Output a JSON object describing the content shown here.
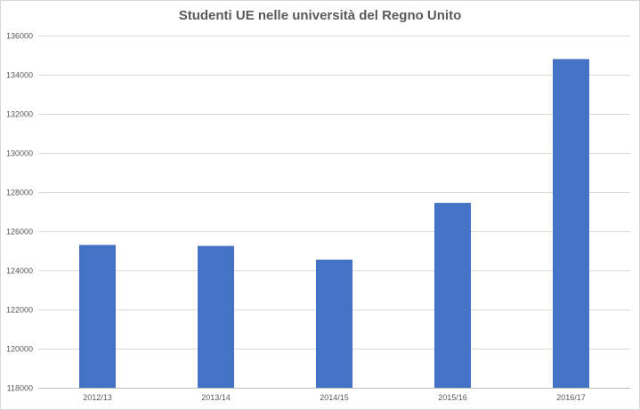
{
  "chart_data": {
    "type": "bar",
    "title": "Studenti UE nelle università del Regno Unito",
    "xlabel": "",
    "ylabel": "",
    "categories": [
      "2012/13",
      "2013/14",
      "2014/15",
      "2015/16",
      "2016/17"
    ],
    "values": [
      125300,
      125250,
      124550,
      127450,
      134800
    ],
    "ylim": [
      118000,
      136000
    ],
    "yticks": [
      118000,
      120000,
      122000,
      124000,
      126000,
      128000,
      130000,
      132000,
      134000,
      136000
    ],
    "grid": true,
    "legend": "none",
    "bar_color": "#4472c4",
    "grid_color": "#d9d9d9"
  }
}
